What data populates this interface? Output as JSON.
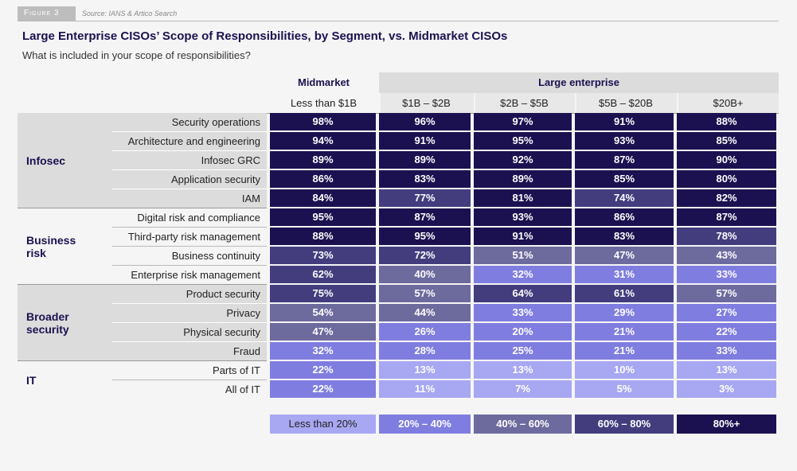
{
  "header": {
    "figure": "Figure 3",
    "source": "Source: IANS & Artico Search"
  },
  "title": "Large Enterprise CISOs’ Scope of Responsibilities, by Segment, vs. Midmarket CISOs",
  "subtitle": "What is included in your scope of responsibilities?",
  "table": {
    "column_groups": [
      "Midmarket",
      "Large enterprise"
    ],
    "columns": [
      "Less than $1B",
      "$1B – $2B",
      "$2B – $5B",
      "$5B – $20B",
      "$20B+"
    ],
    "groups": [
      {
        "label": "Infosec",
        "rows": [
          {
            "label": "Security operations",
            "cells": [
              "98%",
              "96%",
              "97%",
              "91%",
              "88%"
            ]
          },
          {
            "label": "Architecture and engineering",
            "cells": [
              "94%",
              "91%",
              "95%",
              "93%",
              "85%"
            ]
          },
          {
            "label": "Infosec GRC",
            "cells": [
              "89%",
              "89%",
              "92%",
              "87%",
              "90%"
            ]
          },
          {
            "label": "Application security",
            "cells": [
              "86%",
              "83%",
              "89%",
              "85%",
              "80%"
            ]
          },
          {
            "label": "IAM",
            "cells": [
              "84%",
              "77%",
              "81%",
              "74%",
              "82%"
            ]
          }
        ]
      },
      {
        "label": "Business risk",
        "rows": [
          {
            "label": "Digital risk and compliance",
            "cells": [
              "95%",
              "87%",
              "93%",
              "86%",
              "87%"
            ]
          },
          {
            "label": "Third-party risk management",
            "cells": [
              "88%",
              "95%",
              "91%",
              "83%",
              "78%"
            ]
          },
          {
            "label": "Business continuity",
            "cells": [
              "73%",
              "72%",
              "51%",
              "47%",
              "43%"
            ]
          },
          {
            "label": "Enterprise risk management",
            "cells": [
              "62%",
              "40%",
              "32%",
              "31%",
              "33%"
            ]
          }
        ]
      },
      {
        "label": "Broader security",
        "rows": [
          {
            "label": "Product security",
            "cells": [
              "75%",
              "57%",
              "64%",
              "61%",
              "57%"
            ]
          },
          {
            "label": "Privacy",
            "cells": [
              "54%",
              "44%",
              "33%",
              "29%",
              "27%"
            ]
          },
          {
            "label": "Physical security",
            "cells": [
              "47%",
              "26%",
              "20%",
              "21%",
              "22%"
            ]
          },
          {
            "label": "Fraud",
            "cells": [
              "32%",
              "28%",
              "25%",
              "21%",
              "33%"
            ]
          }
        ]
      },
      {
        "label": "IT",
        "rows": [
          {
            "label": "Parts of IT",
            "cells": [
              "22%",
              "13%",
              "13%",
              "10%",
              "13%"
            ]
          },
          {
            "label": "All of IT",
            "cells": [
              "22%",
              "11%",
              "7%",
              "5%",
              "3%"
            ]
          }
        ]
      }
    ]
  },
  "legend": [
    {
      "value": 0,
      "label": "Less than 20%",
      "color": "#a8a7f2"
    },
    {
      "value": 20,
      "label": "20% – 40%",
      "color": "#807de0"
    },
    {
      "value": 40,
      "label": "40% – 60%",
      "color": "#6d6a9e"
    },
    {
      "value": 60,
      "label": "60% – 80%",
      "color": "#433d7e"
    },
    {
      "value": 80,
      "label": "80%+",
      "color": "#1c1150"
    }
  ]
}
